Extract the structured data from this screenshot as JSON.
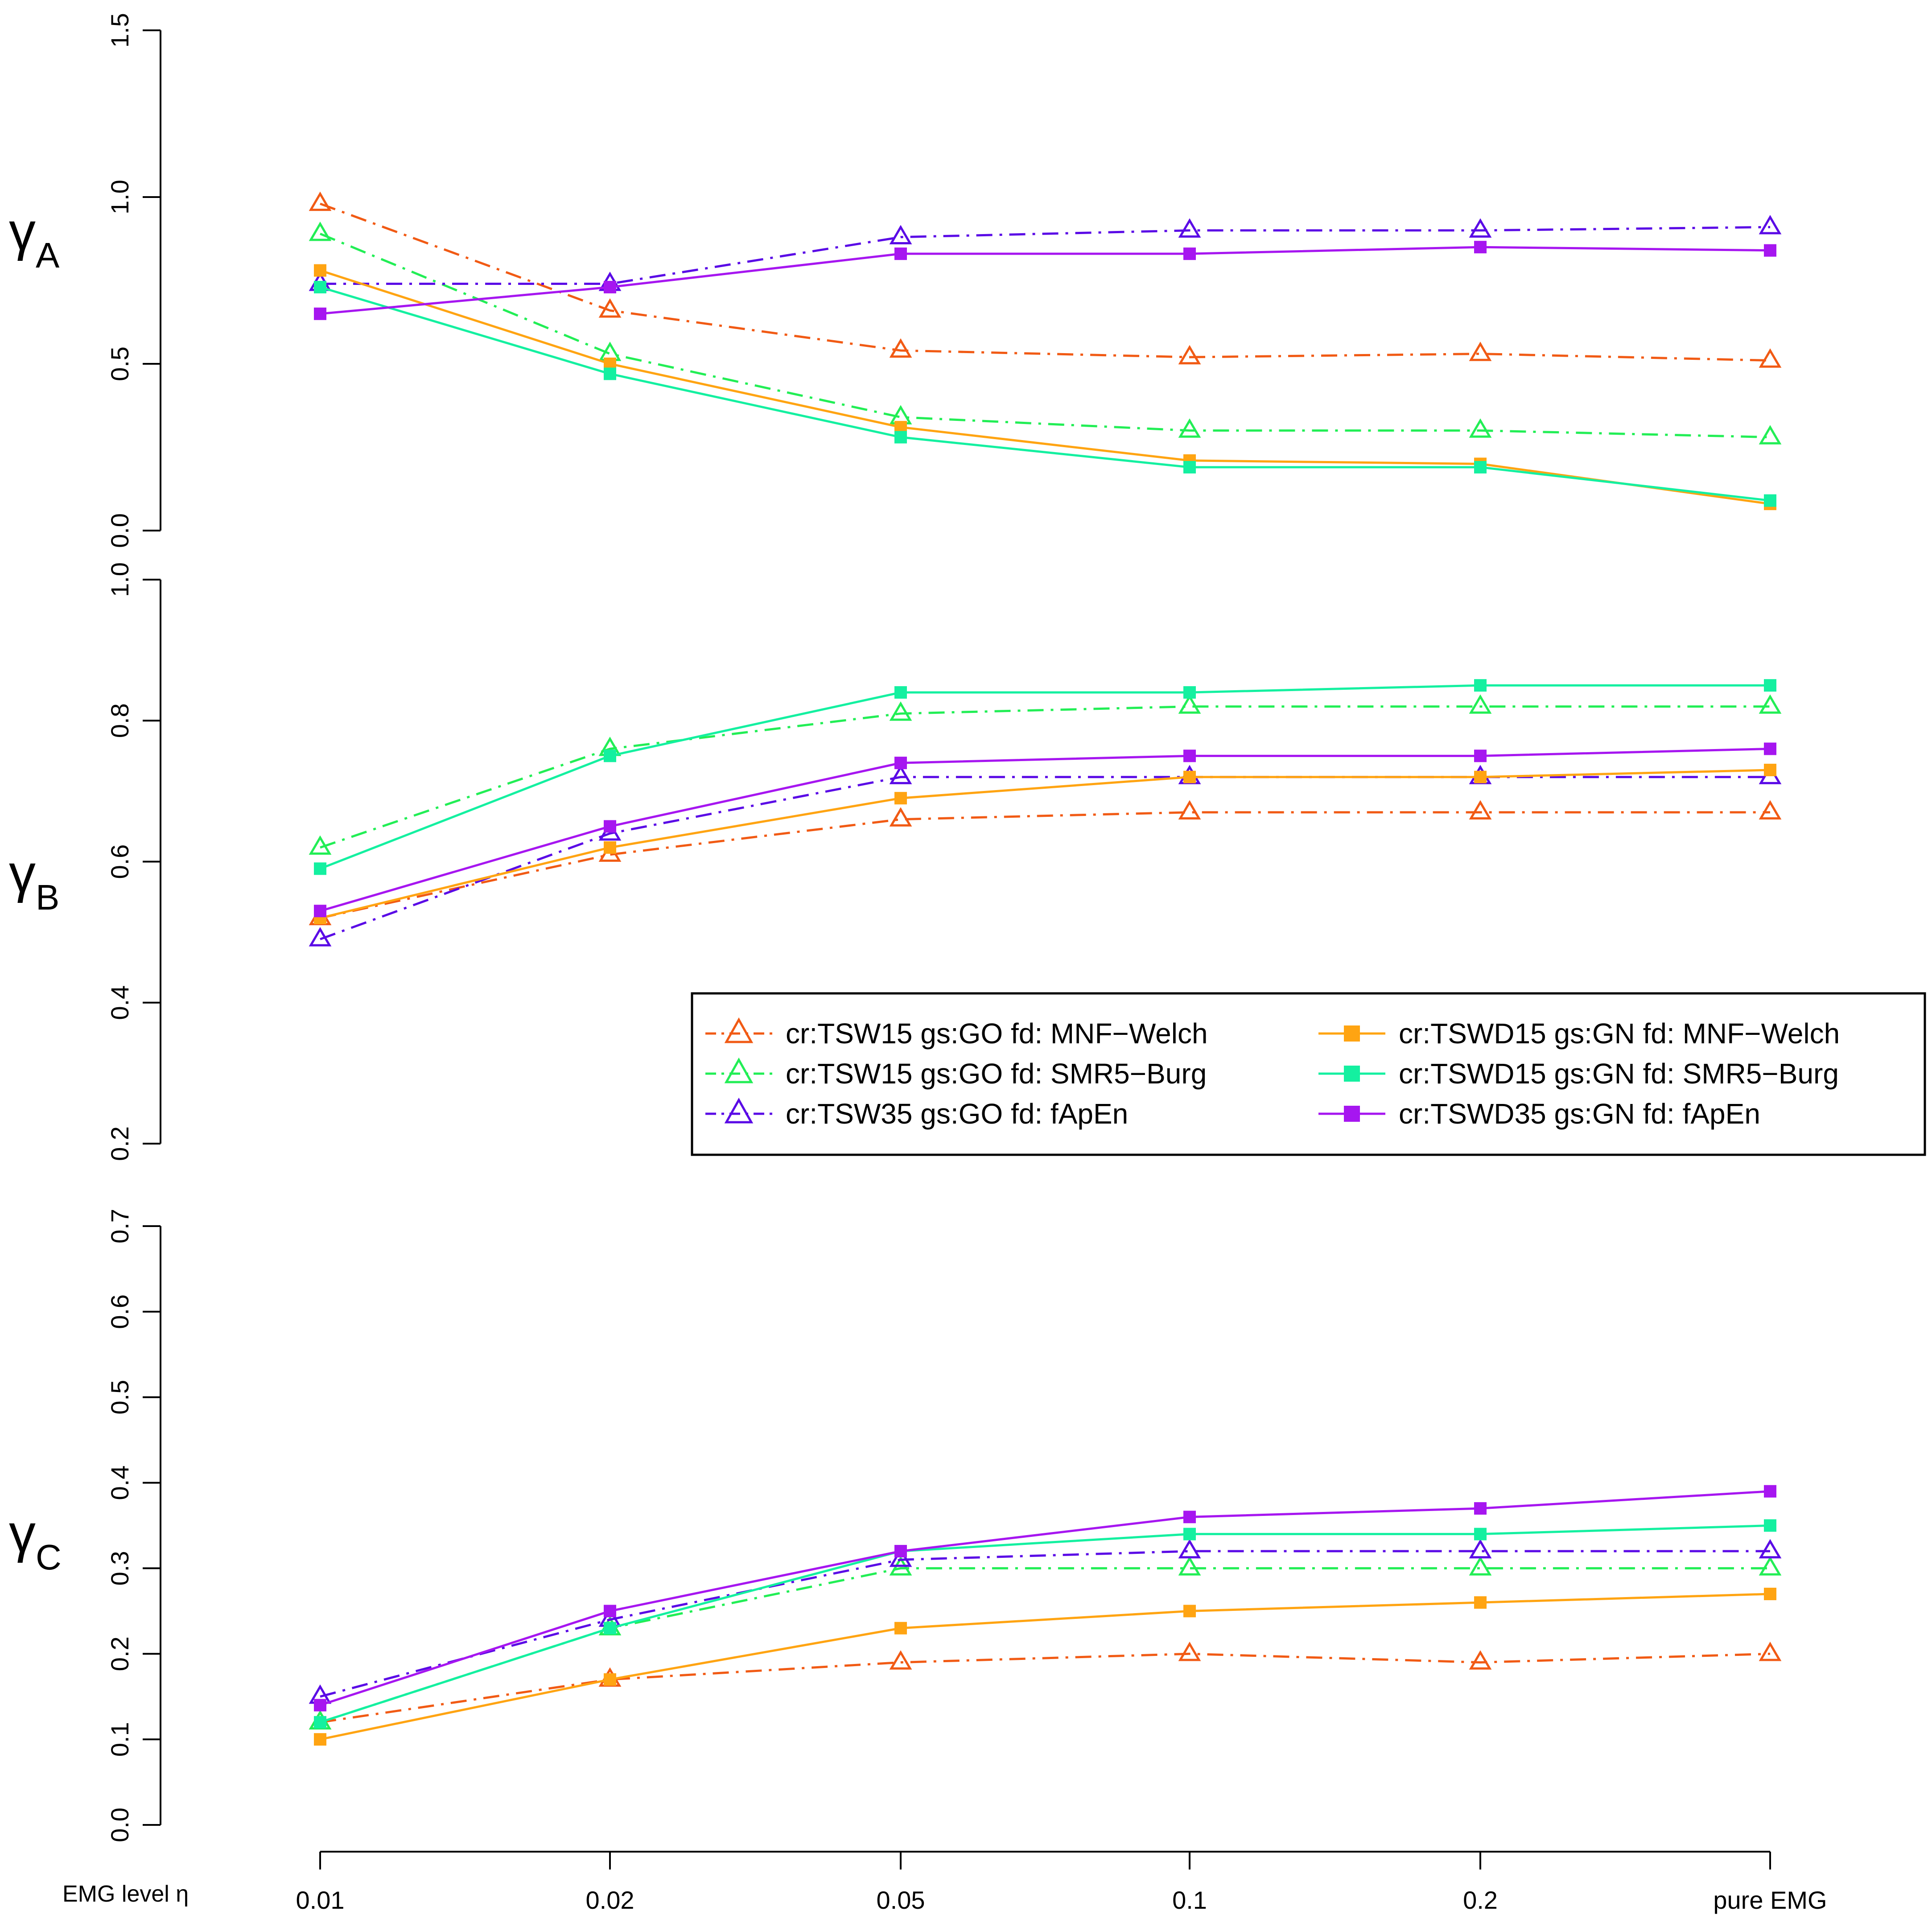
{
  "chart_data": {
    "type": "line",
    "x_title": "EMG level η",
    "categories": [
      "0.01",
      "0.02",
      "0.05",
      "0.1",
      "0.2",
      "pure EMG"
    ],
    "series_styles": [
      {
        "name": "cr:TSW15 gs:GO fd: MNF−Welch",
        "color": "#F15A14",
        "marker": "triangle-open",
        "line": "dashdot"
      },
      {
        "name": "cr:TSW15 gs:GO fd: SMR5−Burg",
        "color": "#22EE55",
        "marker": "triangle-open",
        "line": "dashdot"
      },
      {
        "name": "cr:TSW35 gs:GO fd: fApEn",
        "color": "#5A0AE6",
        "marker": "triangle-open",
        "line": "dashdot"
      },
      {
        "name": "cr:TSWD15 gs:GN fd: MNF−Welch",
        "color": "#FFA412",
        "marker": "square",
        "line": "solid"
      },
      {
        "name": "cr:TSWD15 gs:GN fd: SMR5−Burg",
        "color": "#14F0A0",
        "marker": "square",
        "line": "solid"
      },
      {
        "name": "cr:TSWD35 gs:GN fd: fApEn",
        "color": "#A616F0",
        "marker": "square",
        "line": "solid"
      }
    ],
    "panels": [
      {
        "id": "A",
        "ylabel": "γ",
        "ylabel_sub": "A",
        "ylim": [
          0.0,
          1.5
        ],
        "yticks": [
          "0.0",
          "0.5",
          "1.0",
          "1.5"
        ],
        "series": [
          {
            "values": [
              0.98,
              0.66,
              0.54,
              0.52,
              0.53,
              0.51
            ]
          },
          {
            "values": [
              0.89,
              0.53,
              0.34,
              0.3,
              0.3,
              0.28
            ]
          },
          {
            "values": [
              0.74,
              0.74,
              0.88,
              0.9,
              0.9,
              0.91
            ]
          },
          {
            "values": [
              0.78,
              0.5,
              0.31,
              0.21,
              0.2,
              0.08
            ]
          },
          {
            "values": [
              0.73,
              0.47,
              0.28,
              0.19,
              0.19,
              0.09
            ]
          },
          {
            "values": [
              0.65,
              0.73,
              0.83,
              0.83,
              0.85,
              0.84
            ]
          }
        ]
      },
      {
        "id": "B",
        "ylabel": "γ",
        "ylabel_sub": "B",
        "ylim": [
          0.2,
          1.0
        ],
        "yticks": [
          "0.2",
          "0.4",
          "0.6",
          "0.8",
          "1.0"
        ],
        "series": [
          {
            "values": [
              0.52,
              0.61,
              0.66,
              0.67,
              0.67,
              0.67
            ]
          },
          {
            "values": [
              0.62,
              0.76,
              0.81,
              0.82,
              0.82,
              0.82
            ]
          },
          {
            "values": [
              0.49,
              0.64,
              0.72,
              0.72,
              0.72,
              0.72
            ]
          },
          {
            "values": [
              0.52,
              0.62,
              0.69,
              0.72,
              0.72,
              0.73
            ]
          },
          {
            "values": [
              0.59,
              0.75,
              0.84,
              0.84,
              0.85,
              0.85
            ]
          },
          {
            "values": [
              0.53,
              0.65,
              0.74,
              0.75,
              0.75,
              0.76
            ]
          }
        ]
      },
      {
        "id": "C",
        "ylabel": "γ",
        "ylabel_sub": "C",
        "ylim": [
          0.0,
          0.7
        ],
        "yticks": [
          "0.0",
          "0.1",
          "0.2",
          "0.3",
          "0.4",
          "0.5",
          "0.6",
          "0.7"
        ],
        "series": [
          {
            "values": [
              0.12,
              0.17,
              0.19,
              0.2,
              0.19,
              0.2
            ]
          },
          {
            "values": [
              0.12,
              0.23,
              0.3,
              0.3,
              0.3,
              0.3
            ]
          },
          {
            "values": [
              0.15,
              0.24,
              0.31,
              0.32,
              0.32,
              0.32
            ]
          },
          {
            "values": [
              0.1,
              0.17,
              0.23,
              0.25,
              0.26,
              0.27
            ]
          },
          {
            "values": [
              0.12,
              0.23,
              0.32,
              0.34,
              0.34,
              0.35
            ]
          },
          {
            "values": [
              0.14,
              0.25,
              0.32,
              0.36,
              0.37,
              0.39
            ]
          }
        ]
      }
    ],
    "legend": {
      "panel": "B",
      "placement": "bottom-right",
      "columns": 2,
      "entries": [
        "cr:TSW15 gs:GO fd: MNF−Welch",
        "cr:TSW15 gs:GO fd: SMR5−Burg",
        "cr:TSW35 gs:GO fd: fApEn",
        "cr:TSWD15 gs:GN fd: MNF−Welch",
        "cr:TSWD15 gs:GN fd: SMR5−Burg",
        "cr:TSWD35 gs:GN fd: fApEn"
      ]
    }
  }
}
